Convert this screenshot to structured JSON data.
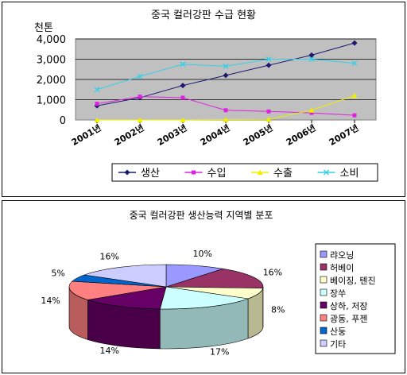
{
  "chart_data": [
    {
      "type": "line",
      "title": "중국 컬러강판 수급 현황",
      "ylabel": "천톤",
      "categories": [
        "2001년",
        "2002년",
        "2003년",
        "2004년",
        "2005년",
        "2006년",
        "2007년"
      ],
      "yticks": [
        "0",
        "1,000",
        "2,000",
        "3,000",
        "4,000"
      ],
      "ylim": [
        0,
        4000
      ],
      "grid": true,
      "legend": "bottom",
      "series": [
        {
          "name": "생산",
          "color": "#1a1a6e",
          "marker": "diamond",
          "values": [
            700,
            1100,
            1700,
            2200,
            2700,
            3200,
            3800
          ]
        },
        {
          "name": "수입",
          "color": "#e020e0",
          "marker": "square",
          "values": [
            800,
            1150,
            1100,
            480,
            420,
            350,
            230
          ]
        },
        {
          "name": "수출",
          "color": "#f0f000",
          "marker": "triangle",
          "values": [
            0,
            0,
            0,
            20,
            30,
            480,
            1200
          ]
        },
        {
          "name": "소비",
          "color": "#30d0e8",
          "marker": "cross",
          "values": [
            1500,
            2150,
            2750,
            2650,
            3000,
            3000,
            2800
          ]
        }
      ]
    },
    {
      "type": "pie",
      "title": "중국 컬러강판 생산능력 지역별 분포",
      "legend": "right",
      "slices": [
        {
          "label": "랴오닝",
          "value": 10,
          "text": "10%",
          "color": "#9999ff"
        },
        {
          "label": "허베이",
          "value": 16,
          "text": "16%",
          "color": "#993366"
        },
        {
          "label": "베이징, 톈진",
          "value": 8,
          "text": "8%",
          "color": "#ffffcc"
        },
        {
          "label": "장쑤",
          "value": 17,
          "text": "17%",
          "color": "#ccffff"
        },
        {
          "label": "상하, 저장",
          "value": 14,
          "text": "14%",
          "color": "#660066"
        },
        {
          "label": "광동, 푸젠",
          "value": 14,
          "text": "14%",
          "color": "#ff8080"
        },
        {
          "label": "산둥",
          "value": 5,
          "text": "5%",
          "color": "#0066cc"
        },
        {
          "label": "기타",
          "value": 16,
          "text": "16%",
          "color": "#ccccff"
        }
      ]
    }
  ]
}
